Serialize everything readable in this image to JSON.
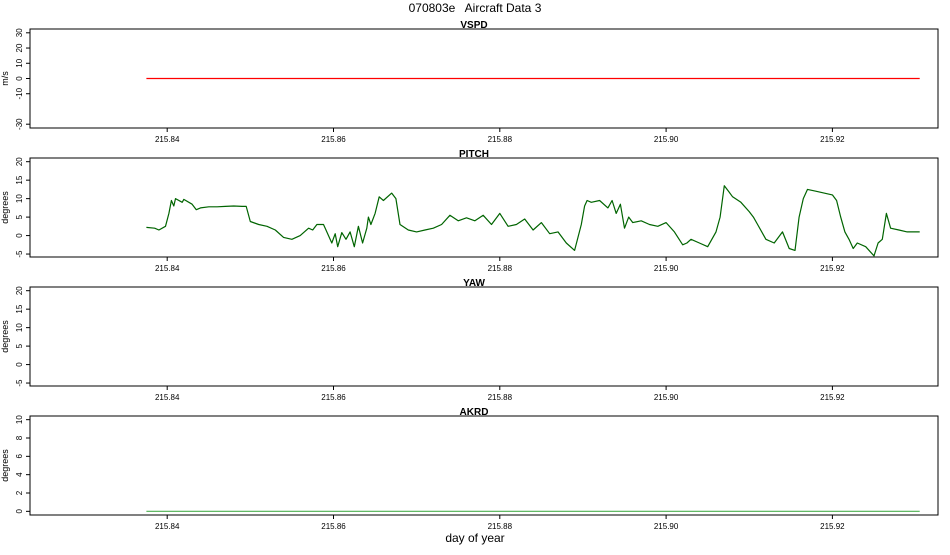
{
  "page": {
    "title_id": "070803e",
    "title_name": "Aircraft Data 3",
    "xlabel": "day of year"
  },
  "chart_data": [
    {
      "type": "line",
      "title": "VSPD",
      "ylabel": "m/s",
      "xlim": [
        215.8235,
        215.9327
      ],
      "ylim": [
        -32.5,
        32.5
      ],
      "yticks": [
        -30,
        -10,
        0,
        10,
        20,
        30
      ],
      "yticklabels": [
        "-30",
        "-10",
        "0",
        "10",
        "20",
        "30"
      ],
      "xticks": [
        215.84,
        215.86,
        215.88,
        215.9,
        215.92
      ],
      "xticklabels": [
        "215.84",
        "215.86",
        "215.88",
        "215.90",
        "215.92"
      ],
      "grid": false,
      "series": [
        {
          "color": "#ff0000",
          "x": [
            215.8375,
            215.9305
          ],
          "y": [
            0,
            0
          ]
        }
      ]
    },
    {
      "type": "line",
      "title": "PITCH",
      "ylabel": "degrees",
      "xlim": [
        215.8235,
        215.9327
      ],
      "ylim": [
        -5.8,
        21
      ],
      "yticks": [
        -5,
        0,
        5,
        10,
        15,
        20
      ],
      "yticklabels": [
        "-5",
        "0",
        "5",
        "10",
        "15",
        "20"
      ],
      "xticks": [
        215.84,
        215.86,
        215.88,
        215.9,
        215.92
      ],
      "xticklabels": [
        "215.84",
        "215.86",
        "215.88",
        "215.90",
        "215.92"
      ],
      "grid": false,
      "series": [
        {
          "color": "#006400",
          "x": [
            215.8375,
            215.8385,
            215.839,
            215.8398,
            215.8402,
            215.8405,
            215.8408,
            215.841,
            215.8418,
            215.842,
            215.843,
            215.8435,
            215.844,
            215.845,
            215.846,
            215.847,
            215.848,
            215.849,
            215.8495,
            215.85,
            215.851,
            215.852,
            215.853,
            215.854,
            215.855,
            215.856,
            215.857,
            215.8575,
            215.858,
            215.8588,
            215.859,
            215.8598,
            215.8602,
            215.8605,
            215.861,
            215.8615,
            215.862,
            215.8625,
            215.863,
            215.8635,
            215.864,
            215.8642,
            215.8645,
            215.865,
            215.8655,
            215.866,
            215.867,
            215.8675,
            215.868,
            215.869,
            215.87,
            215.871,
            215.872,
            215.873,
            215.874,
            215.875,
            215.876,
            215.877,
            215.878,
            215.879,
            215.88,
            215.881,
            215.882,
            215.883,
            215.884,
            215.885,
            215.886,
            215.887,
            215.888,
            215.889,
            215.8898,
            215.8902,
            215.8905,
            215.891,
            215.892,
            215.893,
            215.8935,
            215.894,
            215.8945,
            215.895,
            215.8955,
            215.896,
            215.897,
            215.898,
            215.899,
            215.9,
            215.901,
            215.902,
            215.9025,
            215.903,
            215.904,
            215.905,
            215.906,
            215.9065,
            215.907,
            215.9075,
            215.908,
            215.909,
            215.91,
            215.9105,
            215.911,
            215.912,
            215.913,
            215.914,
            215.9148,
            215.9155,
            215.916,
            215.9165,
            215.917,
            215.918,
            215.919,
            215.92,
            215.9205,
            215.921,
            215.9215,
            215.922,
            215.9225,
            215.923,
            215.924,
            215.925,
            215.9255,
            215.926,
            215.9265,
            215.927,
            215.928,
            215.929,
            215.9305
          ],
          "y": [
            2.2,
            2.0,
            1.5,
            2.5,
            6.0,
            9.5,
            8.0,
            10.0,
            9.0,
            9.8,
            8.5,
            7.0,
            7.5,
            7.8,
            7.8,
            7.9,
            8.0,
            7.9,
            7.9,
            3.8,
            3.0,
            2.5,
            1.5,
            -0.5,
            -1.0,
            0.0,
            2.0,
            1.5,
            3.0,
            3.0,
            2.0,
            -2.0,
            0.5,
            -3.0,
            0.8,
            -1.0,
            1.0,
            -3.0,
            2.5,
            -2.0,
            2.0,
            5.0,
            3.0,
            6.0,
            10.5,
            9.5,
            11.5,
            10.0,
            3.0,
            1.5,
            1.0,
            1.5,
            2.0,
            3.0,
            5.5,
            4.0,
            4.8,
            4.0,
            5.5,
            3.0,
            6.0,
            2.5,
            3.0,
            4.5,
            1.5,
            3.5,
            0.5,
            1.0,
            -2.0,
            -4.0,
            3.0,
            8.0,
            9.5,
            9.0,
            9.5,
            7.5,
            9.5,
            6.0,
            8.5,
            2.0,
            5.0,
            3.5,
            4.0,
            3.0,
            2.5,
            3.5,
            1.0,
            -2.5,
            -2.0,
            -1.0,
            -2.0,
            -3.0,
            1.0,
            5.0,
            13.5,
            12.0,
            10.5,
            9.0,
            6.5,
            5.0,
            3.0,
            -1.0,
            -2.0,
            1.0,
            -3.5,
            -4.0,
            5.0,
            10.0,
            12.5,
            12.0,
            11.5,
            11.0,
            9.5,
            5.0,
            1.0,
            -1.0,
            -3.5,
            -2.0,
            -3.0,
            -5.5,
            -2.0,
            -1.0,
            6.0,
            2.0,
            1.5,
            1.0,
            1.0
          ]
        }
      ]
    },
    {
      "type": "line",
      "title": "YAW",
      "ylabel": "degrees",
      "xlim": [
        215.8235,
        215.9327
      ],
      "ylim": [
        -5.8,
        21
      ],
      "yticks": [
        -5,
        0,
        5,
        10,
        15,
        20
      ],
      "yticklabels": [
        "-5",
        "0",
        "5",
        "10",
        "15",
        "20"
      ],
      "xticks": [
        215.84,
        215.86,
        215.88,
        215.9,
        215.92
      ],
      "xticklabels": [
        "215.84",
        "215.86",
        "215.88",
        "215.90",
        "215.92"
      ],
      "grid": false,
      "series": []
    },
    {
      "type": "line",
      "title": "AKRD",
      "ylabel": "degrees",
      "xlim": [
        215.8235,
        215.9327
      ],
      "ylim": [
        -0.4,
        10.4
      ],
      "yticks": [
        0,
        2,
        4,
        6,
        8,
        10
      ],
      "yticklabels": [
        "0",
        "2",
        "4",
        "6",
        "8",
        "10"
      ],
      "xticks": [
        215.84,
        215.86,
        215.88,
        215.9,
        215.92
      ],
      "xticklabels": [
        "215.84",
        "215.86",
        "215.88",
        "215.90",
        "215.92"
      ],
      "grid": false,
      "series": [
        {
          "color": "#4caf50",
          "x": [
            215.8375,
            215.9305
          ],
          "y": [
            0,
            0
          ]
        }
      ]
    }
  ]
}
